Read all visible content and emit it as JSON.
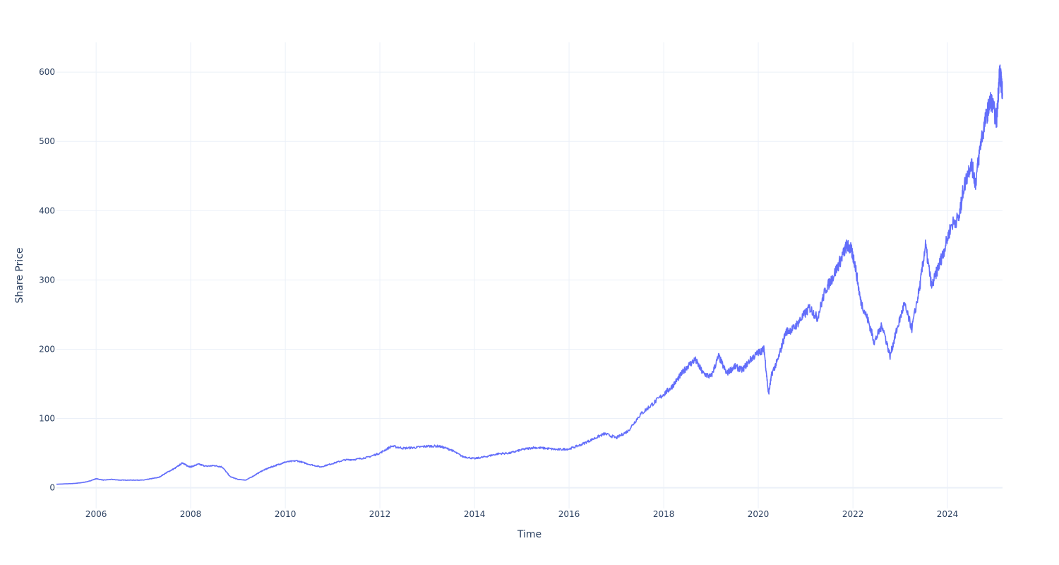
{
  "chart_data": {
    "type": "line",
    "title": "",
    "xlabel": "Time",
    "ylabel": "Share Price",
    "xlim": [
      "2005-03-01",
      "2025-03-01"
    ],
    "ylim": [
      -30,
      643
    ],
    "x_ticks": [
      "2006",
      "2008",
      "2010",
      "2012",
      "2014",
      "2016",
      "2018",
      "2020",
      "2022",
      "2024"
    ],
    "y_ticks": [
      "0",
      "100",
      "200",
      "300",
      "400",
      "500",
      "600"
    ],
    "grid": true,
    "legend": "none",
    "series": [
      {
        "color": "#636efa",
        "x": [
          "2005-03-01",
          "2005-05-01",
          "2005-07-01",
          "2005-09-01",
          "2005-11-01",
          "2006-01-01",
          "2006-03-01",
          "2006-05-01",
          "2006-07-01",
          "2006-09-01",
          "2006-11-01",
          "2007-01-01",
          "2007-03-01",
          "2007-05-01",
          "2007-07-01",
          "2007-09-01",
          "2007-11-01",
          "2007-12-01",
          "2008-01-01",
          "2008-03-01",
          "2008-05-01",
          "2008-07-01",
          "2008-09-01",
          "2008-11-01",
          "2009-01-01",
          "2009-03-01",
          "2009-05-01",
          "2009-07-01",
          "2009-09-01",
          "2009-11-01",
          "2010-01-01",
          "2010-04-01",
          "2010-07-01",
          "2010-10-01",
          "2011-01-01",
          "2011-04-01",
          "2011-07-01",
          "2011-10-01",
          "2012-01-01",
          "2012-04-01",
          "2012-07-01",
          "2012-10-01",
          "2013-01-01",
          "2013-04-01",
          "2013-07-01",
          "2013-10-01",
          "2014-01-01",
          "2014-04-01",
          "2014-07-01",
          "2014-10-01",
          "2015-01-01",
          "2015-04-01",
          "2015-07-01",
          "2015-10-01",
          "2016-01-01",
          "2016-04-01",
          "2016-07-01",
          "2016-10-01",
          "2017-01-01",
          "2017-04-01",
          "2017-07-01",
          "2017-10-01",
          "2018-01-01",
          "2018-03-01",
          "2018-05-01",
          "2018-07-01",
          "2018-09-01",
          "2018-11-01",
          "2019-01-01",
          "2019-03-01",
          "2019-05-01",
          "2019-07-01",
          "2019-09-01",
          "2019-11-01",
          "2020-01-01",
          "2020-02-15",
          "2020-03-20",
          "2020-04-15",
          "2020-06-01",
          "2020-08-01",
          "2020-10-01",
          "2020-12-01",
          "2021-02-01",
          "2021-04-01",
          "2021-06-01",
          "2021-08-01",
          "2021-10-01",
          "2021-11-15",
          "2021-12-15",
          "2022-01-15",
          "2022-03-01",
          "2022-05-01",
          "2022-06-15",
          "2022-08-15",
          "2022-10-15",
          "2022-12-01",
          "2023-02-01",
          "2023-04-01",
          "2023-06-01",
          "2023-07-15",
          "2023-09-01",
          "2023-10-25",
          "2023-12-01",
          "2024-02-01",
          "2024-04-01",
          "2024-05-01",
          "2024-07-01",
          "2024-08-05",
          "2024-09-15",
          "2024-11-01",
          "2024-12-01",
          "2025-01-15",
          "2025-02-05",
          "2025-02-20",
          "2025-03-01"
        ],
        "y": [
          5,
          5.5,
          6,
          7,
          9,
          13,
          11,
          12,
          11,
          11,
          11,
          11,
          13,
          15,
          22,
          28,
          36,
          32,
          30,
          34,
          31,
          32,
          30,
          16,
          12,
          11,
          17,
          24,
          29,
          33,
          37,
          39,
          34,
          30,
          35,
          40,
          41,
          44,
          50,
          60,
          57,
          58,
          60,
          60,
          55,
          45,
          42,
          45,
          49,
          50,
          55,
          58,
          57,
          55,
          56,
          62,
          70,
          78,
          72,
          82,
          105,
          120,
          135,
          145,
          160,
          175,
          185,
          165,
          160,
          190,
          165,
          175,
          170,
          185,
          195,
          200,
          135,
          165,
          185,
          225,
          230,
          245,
          260,
          245,
          285,
          305,
          330,
          350,
          345,
          325,
          270,
          240,
          210,
          235,
          190,
          225,
          265,
          230,
          290,
          350,
          290,
          320,
          340,
          380,
          390,
          430,
          470,
          440,
          500,
          540,
          560,
          530,
          600,
          585,
          570
        ]
      }
    ]
  }
}
